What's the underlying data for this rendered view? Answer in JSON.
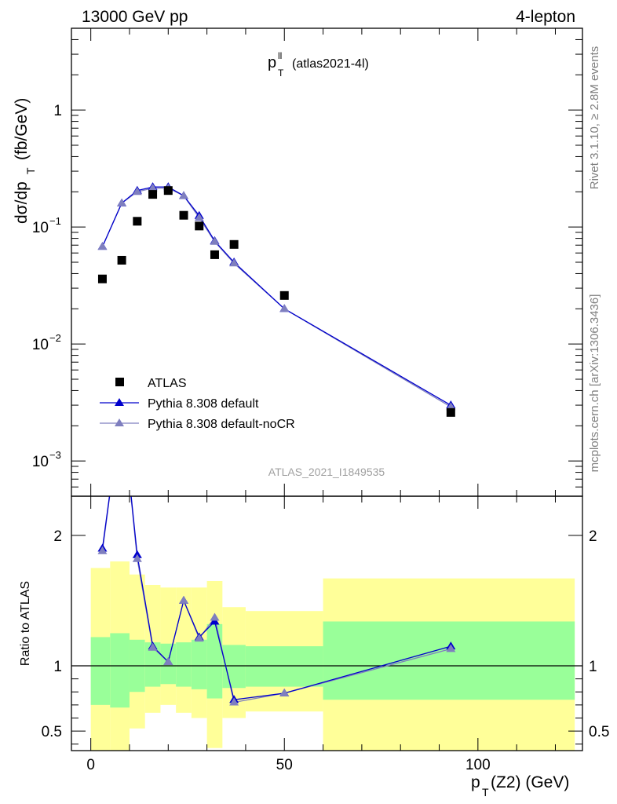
{
  "header": {
    "left_label": "13000 GeV pp",
    "right_label": "4-lepton"
  },
  "side_labels": {
    "rivet": "Rivet 3.1.10, ≥ 2.8M events",
    "mcplots": "mcplots.cern.ch [arXiv:1306.3436]"
  },
  "colors": {
    "data": "#000000",
    "default": "#0000cc",
    "noCR": "#7f7fbf",
    "band_inner": "#99ff99",
    "band_outer": "#ffff99"
  },
  "chart_data": [
    {
      "type": "scatter",
      "title": "p_T^ll (atlas2021-4l)",
      "title_main": "p",
      "title_sup": "ll",
      "title_sub": "T",
      "title_note": "(atlas2021-4l)",
      "watermark": "ATLAS_2021_I1849535",
      "ylabel": "dσ/dp_T (fb/GeV)",
      "ylabel_main": "dσ/dp",
      "ylabel_sub": "T",
      "ylabel_unit": "(fb/GeV)",
      "yscale": "log",
      "ylim": [
        0.0005,
        5
      ],
      "xlim": [
        -5,
        127
      ],
      "y_ticks": [
        {
          "value": 1,
          "base": "1",
          "exp": ""
        },
        {
          "value": 0.1,
          "base": "10",
          "exp": "−1"
        },
        {
          "value": 0.01,
          "base": "10",
          "exp": "−2"
        },
        {
          "value": 0.001,
          "base": "10",
          "exp": "−3"
        }
      ],
      "legend_position": "bottom-left",
      "series": [
        {
          "name": "ATLAS",
          "marker": "square",
          "x": [
            3,
            8,
            12,
            16,
            20,
            24,
            28,
            32,
            37,
            50,
            93
          ],
          "y": [
            0.036,
            0.052,
            0.112,
            0.19,
            0.205,
            0.126,
            0.102,
            0.058,
            0.071,
            0.026,
            0.0026
          ]
        },
        {
          "name": "Pythia 8.308 default",
          "marker": "triangle",
          "x": [
            3,
            8,
            12,
            16,
            20,
            24,
            28,
            32,
            37,
            50,
            93
          ],
          "y": [
            0.068,
            0.16,
            0.205,
            0.22,
            0.22,
            0.185,
            0.125,
            0.076,
            0.05,
            0.02,
            0.003
          ]
        },
        {
          "name": "Pythia 8.308 default-noCR",
          "marker": "triangle",
          "x": [
            3,
            8,
            12,
            16,
            20,
            24,
            28,
            32,
            37,
            50,
            93
          ],
          "y": [
            0.068,
            0.16,
            0.2,
            0.215,
            0.215,
            0.185,
            0.12,
            0.075,
            0.049,
            0.02,
            0.0029
          ]
        }
      ]
    },
    {
      "type": "line",
      "ylabel": "Ratio to ATLAS",
      "xlabel": "p_T(Z2) (GeV)",
      "xlabel_main": "p",
      "xlabel_sub": "T",
      "xlabel_rest": "(Z2) (GeV)",
      "ylim": [
        0.35,
        2.3
      ],
      "xlim": [
        -5,
        127
      ],
      "x_ticks": [
        0,
        50,
        100
      ],
      "y_ticks": [
        0.5,
        1,
        2
      ],
      "bins": [
        {
          "lo": 0,
          "hi": 5,
          "inner": [
            0.7,
            1.22
          ],
          "outer": [
            0.35,
            1.75
          ]
        },
        {
          "lo": 5,
          "hi": 10,
          "inner": [
            0.68,
            1.25
          ],
          "outer": [
            0.35,
            1.8
          ]
        },
        {
          "lo": 10,
          "hi": 14,
          "inner": [
            0.8,
            1.2
          ],
          "outer": [
            0.52,
            1.7
          ]
        },
        {
          "lo": 14,
          "hi": 18,
          "inner": [
            0.84,
            1.18
          ],
          "outer": [
            0.64,
            1.62
          ]
        },
        {
          "lo": 18,
          "hi": 22,
          "inner": [
            0.86,
            1.17
          ],
          "outer": [
            0.7,
            1.6
          ]
        },
        {
          "lo": 22,
          "hi": 26,
          "inner": [
            0.84,
            1.18
          ],
          "outer": [
            0.64,
            1.6
          ]
        },
        {
          "lo": 26,
          "hi": 30,
          "inner": [
            0.82,
            1.2
          ],
          "outer": [
            0.6,
            1.6
          ]
        },
        {
          "lo": 30,
          "hi": 34,
          "inner": [
            0.75,
            1.32
          ],
          "outer": [
            0.37,
            1.65
          ]
        },
        {
          "lo": 34,
          "hi": 40,
          "inner": [
            0.83,
            1.16
          ],
          "outer": [
            0.6,
            1.45
          ]
        },
        {
          "lo": 40,
          "hi": 60,
          "inner": [
            0.84,
            1.15
          ],
          "outer": [
            0.65,
            1.42
          ]
        },
        {
          "lo": 60,
          "hi": 125,
          "inner": [
            0.74,
            1.34
          ],
          "outer": [
            0.35,
            1.67
          ]
        }
      ],
      "series": [
        {
          "name": "Pythia 8.308 default",
          "x": [
            3,
            8,
            12,
            16,
            20,
            24,
            28,
            32,
            37,
            50,
            93
          ],
          "y": [
            1.9,
            3.0,
            1.85,
            1.15,
            1.03,
            1.5,
            1.22,
            1.34,
            0.74,
            0.79,
            1.15
          ]
        },
        {
          "name": "Pythia 8.308 default-noCR",
          "x": [
            3,
            8,
            12,
            16,
            20,
            24,
            28,
            32,
            37,
            50,
            93
          ],
          "y": [
            1.88,
            3.0,
            1.82,
            1.14,
            1.03,
            1.5,
            1.21,
            1.37,
            0.72,
            0.79,
            1.13
          ]
        }
      ]
    }
  ]
}
